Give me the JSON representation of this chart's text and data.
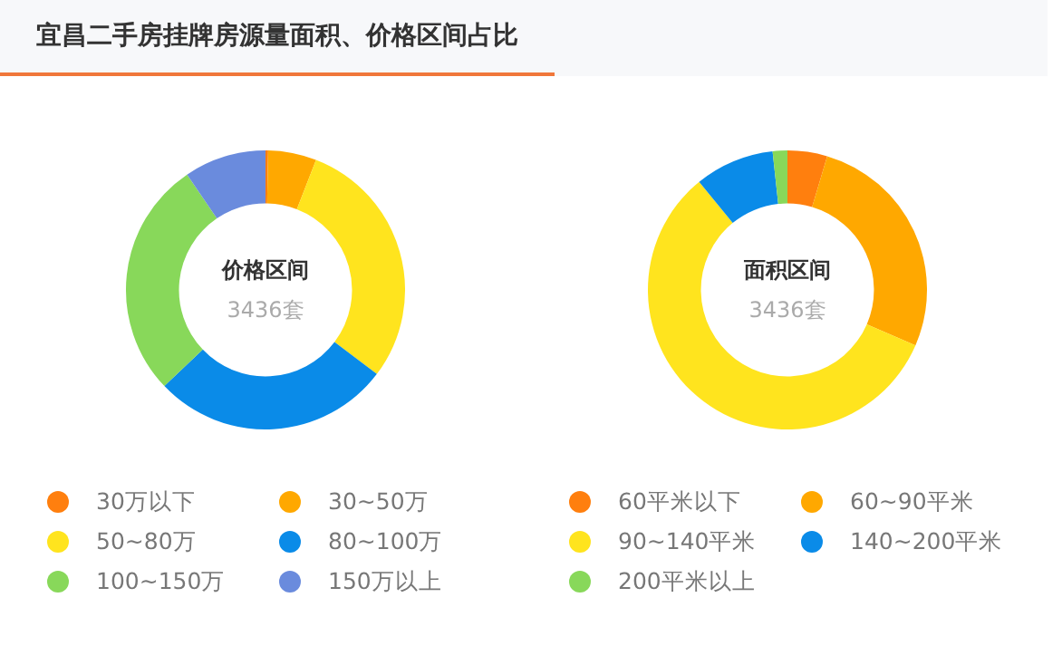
{
  "chart_data": [
    {
      "type": "donut",
      "title": "价格区间",
      "subtitle": "3436套",
      "annotations": [
        "宜昌二手房挂牌房源量面积、价格区间占比"
      ],
      "categories": [
        "30万以下",
        "30~50万",
        "50~80万",
        "80~100万",
        "100~150万",
        "150万以上"
      ],
      "values": [
        0.3,
        5.6,
        29.4,
        27.6,
        27.6,
        9.5
      ],
      "colors": [
        "#ff7f0e",
        "#ffa800",
        "#ffe41e",
        "#0a8be8",
        "#88d85a",
        "#6a8bdd"
      ],
      "legend": "bottom"
    },
    {
      "type": "donut",
      "title": "面积区间",
      "subtitle": "3436套",
      "categories": [
        "60平米以下",
        "60~90平米",
        "90~140平米",
        "140~200平米",
        "200平米以上"
      ],
      "values": [
        4.6,
        26.9,
        57.6,
        9.2,
        1.7
      ],
      "colors": [
        "#ff7f0e",
        "#ffa800",
        "#ffe41e",
        "#0a8be8",
        "#88d85a"
      ],
      "legend": "bottom"
    }
  ]
}
